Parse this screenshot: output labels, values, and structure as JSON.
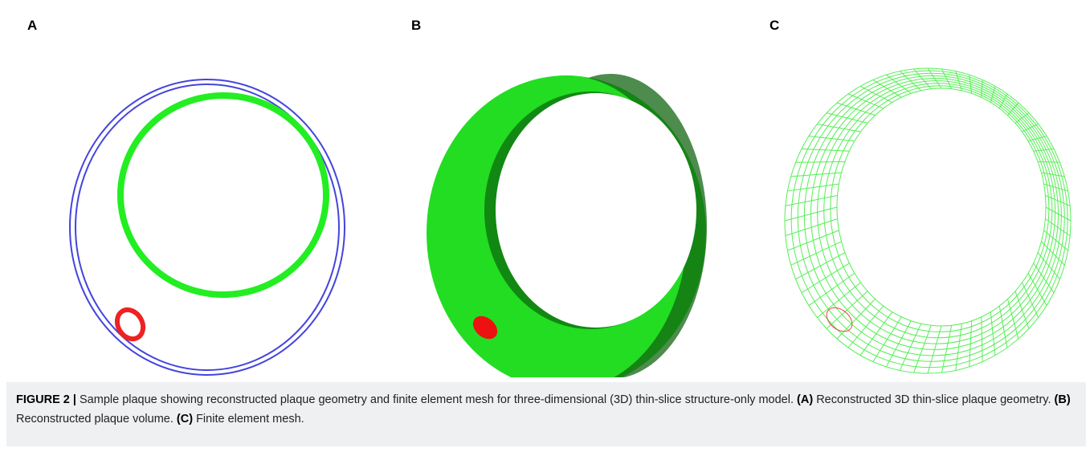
{
  "panels": [
    {
      "label": "A"
    },
    {
      "label": "B"
    },
    {
      "label": "C"
    }
  ],
  "caption": {
    "label": "FIGURE 2 |",
    "text": "Sample plaque showing reconstructed plaque geometry and finite element mesh for three-dimensional (3D) thin-slice structure-only model.",
    "parts": [
      {
        "label": "(A)",
        "text": "Reconstructed 3D thin-slice plaque geometry."
      },
      {
        "label": "(B)",
        "text": "Reconstructed plaque volume."
      },
      {
        "label": "(C)",
        "text": "Finite element mesh."
      }
    ]
  }
}
